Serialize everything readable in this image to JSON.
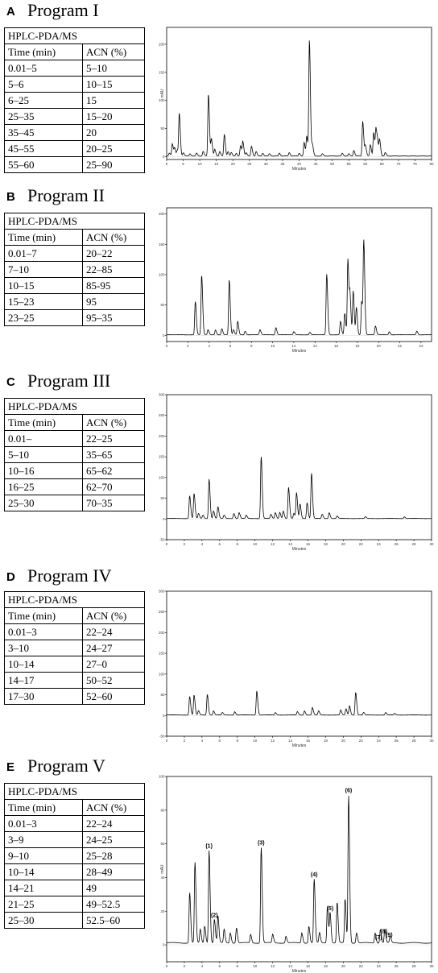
{
  "panels": [
    {
      "letter": "A",
      "title": "Program I",
      "table_header": "HPLC-PDA/MS",
      "col_time": "Time (min)",
      "col_acn": "ACN (%)",
      "rows": [
        [
          "0.01–5",
          "5–10"
        ],
        [
          "5–6",
          "10–15"
        ],
        [
          "6–25",
          "15"
        ],
        [
          "25–35",
          "15–20"
        ],
        [
          "35–45",
          "20"
        ],
        [
          "45–55",
          "20–25"
        ],
        [
          "55–60",
          "25–90"
        ]
      ]
    },
    {
      "letter": "B",
      "title": "Program II",
      "table_header": "HPLC-PDA/MS",
      "col_time": "Time (min)",
      "col_acn": "ACN (%)",
      "rows": [
        [
          "0.01–7",
          "20–22"
        ],
        [
          "7–10",
          "22–85"
        ],
        [
          "10–15",
          "85-95"
        ],
        [
          "15–23",
          "95"
        ],
        [
          "23–25",
          "95–35"
        ]
      ]
    },
    {
      "letter": "C",
      "title": "Program III",
      "table_header": "HPLC-PDA/MS",
      "col_time": "Time (min)",
      "col_acn": "ACN (%)",
      "rows": [
        [
          "0.01–",
          "22–25"
        ],
        [
          "5–10",
          "35–65"
        ],
        [
          "10–16",
          "65–62"
        ],
        [
          "16–25",
          "62–70"
        ],
        [
          "25–30",
          "70–35"
        ]
      ]
    },
    {
      "letter": "D",
      "title": "Program IV",
      "table_header": "HPLC-PDA/MS",
      "col_time": "Time (min)",
      "col_acn": "ACN (%)",
      "rows": [
        [
          "0.01–3",
          "22–24"
        ],
        [
          "3–10",
          "24–27"
        ],
        [
          "10–14",
          "27–0"
        ],
        [
          "14–17",
          "50–52"
        ],
        [
          "17–30",
          "52–60"
        ]
      ]
    },
    {
      "letter": "E",
      "title": "Program V",
      "table_header": "HPLC-PDA/MS",
      "col_time": "Time (min)",
      "col_acn": "ACN (%)",
      "rows": [
        [
          "0.01–3",
          "22–24"
        ],
        [
          "3–9",
          "24–25"
        ],
        [
          "9–10",
          "25–28"
        ],
        [
          "10–14",
          "28–49"
        ],
        [
          "14–21",
          "49"
        ],
        [
          "21–25",
          "49–52.5"
        ],
        [
          "25–30",
          "52.5–60"
        ]
      ]
    }
  ],
  "chart_data": [
    {
      "type": "line",
      "xlabel": "Minutes",
      "ylabel": "mAU",
      "xlim": [
        0,
        80
      ],
      "ylim": [
        -5,
        230
      ],
      "xticks": [
        0,
        5,
        10,
        15,
        20,
        25,
        30,
        35,
        40,
        45,
        50,
        55,
        60,
        65,
        70,
        75,
        80
      ],
      "yticks": [
        0,
        50,
        100,
        150,
        200
      ],
      "peaks": [
        [
          0.8,
          5
        ],
        [
          1.7,
          22
        ],
        [
          2.4,
          14
        ],
        [
          3.2,
          10
        ],
        [
          3.8,
          75
        ],
        [
          5,
          6
        ],
        [
          7,
          4
        ],
        [
          9,
          5
        ],
        [
          11,
          8
        ],
        [
          12.6,
          110
        ],
        [
          13.5,
          30
        ],
        [
          14.5,
          12
        ],
        [
          16,
          8
        ],
        [
          17.4,
          38
        ],
        [
          18.5,
          8
        ],
        [
          19.5,
          6
        ],
        [
          21,
          5
        ],
        [
          22.3,
          18
        ],
        [
          23,
          25
        ],
        [
          24,
          6
        ],
        [
          25.6,
          17
        ],
        [
          27,
          8
        ],
        [
          29,
          5
        ],
        [
          31,
          4
        ],
        [
          34,
          5
        ],
        [
          37,
          6
        ],
        [
          40,
          5
        ],
        [
          41.5,
          24
        ],
        [
          42.3,
          35
        ],
        [
          43.1,
          205
        ],
        [
          44,
          20
        ],
        [
          47,
          4
        ],
        [
          53,
          5
        ],
        [
          55,
          4
        ],
        [
          56.5,
          10
        ],
        [
          59.2,
          62
        ],
        [
          60,
          18
        ],
        [
          61.5,
          20
        ],
        [
          62.5,
          42
        ],
        [
          63.2,
          48
        ],
        [
          63.7,
          20
        ],
        [
          64.3,
          28
        ],
        [
          66,
          6
        ]
      ]
    },
    {
      "type": "line",
      "xlabel": "Minutes",
      "xlim": [
        0,
        25
      ],
      "ylim": [
        -10,
        210
      ],
      "xticks": [
        0,
        2,
        4,
        6,
        8,
        10,
        12,
        14,
        16,
        18,
        20,
        22,
        24
      ],
      "yticks": [
        0,
        50,
        100,
        150,
        200
      ],
      "peaks": [
        [
          2.7,
          55
        ],
        [
          3.3,
          98
        ],
        [
          3.9,
          8
        ],
        [
          4.6,
          8
        ],
        [
          5.2,
          10
        ],
        [
          5.9,
          90
        ],
        [
          6.3,
          8
        ],
        [
          6.7,
          22
        ],
        [
          7.4,
          6
        ],
        [
          8.8,
          8
        ],
        [
          10.3,
          12
        ],
        [
          12,
          5
        ],
        [
          13.5,
          4
        ],
        [
          15.1,
          100
        ],
        [
          16.4,
          22
        ],
        [
          16.8,
          35
        ],
        [
          17.1,
          125
        ],
        [
          17.3,
          60
        ],
        [
          17.6,
          72
        ],
        [
          17.9,
          45
        ],
        [
          18.4,
          55
        ],
        [
          18.6,
          152
        ],
        [
          19.7,
          14
        ],
        [
          21,
          5
        ],
        [
          23.6,
          6
        ]
      ]
    },
    {
      "type": "line",
      "xlabel": "Minutes",
      "xlim": [
        0,
        30
      ],
      "ylim": [
        -50,
        300
      ],
      "xticks": [
        0,
        2,
        4,
        6,
        8,
        10,
        12,
        14,
        16,
        18,
        20,
        22,
        24,
        26,
        28,
        30
      ],
      "yticks": [
        -50,
        0,
        50,
        100,
        150,
        200,
        250,
        300
      ],
      "peaks": [
        [
          2.6,
          55
        ],
        [
          3.1,
          60
        ],
        [
          3.6,
          12
        ],
        [
          4.1,
          8
        ],
        [
          4.8,
          95
        ],
        [
          5.3,
          18
        ],
        [
          5.8,
          28
        ],
        [
          6.5,
          8
        ],
        [
          7.6,
          12
        ],
        [
          8.2,
          14
        ],
        [
          9,
          8
        ],
        [
          10.7,
          150
        ],
        [
          11.8,
          10
        ],
        [
          12.3,
          14
        ],
        [
          12.8,
          15
        ],
        [
          13.2,
          18
        ],
        [
          13.8,
          75
        ],
        [
          14.4,
          12
        ],
        [
          14.7,
          62
        ],
        [
          15.1,
          35
        ],
        [
          15.9,
          38
        ],
        [
          16.4,
          110
        ],
        [
          17.6,
          10
        ],
        [
          18.4,
          14
        ],
        [
          19.3,
          6
        ],
        [
          22.5,
          4
        ],
        [
          26.9,
          4
        ]
      ]
    },
    {
      "type": "line",
      "xlabel": "Minutes",
      "xlim": [
        0,
        30
      ],
      "ylim": [
        -50,
        300
      ],
      "xticks": [
        0,
        2,
        4,
        6,
        8,
        10,
        12,
        14,
        16,
        18,
        20,
        22,
        24,
        26,
        28,
        30
      ],
      "yticks": [
        -50,
        0,
        50,
        100,
        150,
        200,
        250,
        300
      ],
      "peaks": [
        [
          2.6,
          45
        ],
        [
          3.1,
          48
        ],
        [
          3.6,
          10
        ],
        [
          4.6,
          50
        ],
        [
          5.3,
          10
        ],
        [
          6.3,
          6
        ],
        [
          7.7,
          8
        ],
        [
          10.2,
          58
        ],
        [
          12.3,
          6
        ],
        [
          14.8,
          8
        ],
        [
          15.6,
          10
        ],
        [
          16.5,
          18
        ],
        [
          17.2,
          10
        ],
        [
          19.7,
          12
        ],
        [
          20.3,
          15
        ],
        [
          20.7,
          22
        ],
        [
          21.4,
          55
        ],
        [
          22.3,
          6
        ],
        [
          24.8,
          6
        ],
        [
          25.8,
          4
        ]
      ]
    },
    {
      "type": "line",
      "xlabel": "Minutes",
      "ylabel": "mAU",
      "xlim": [
        0,
        30
      ],
      "ylim": [
        -10,
        100
      ],
      "xticks": [
        0,
        2,
        4,
        6,
        8,
        10,
        12,
        14,
        16,
        18,
        20,
        22,
        24,
        26,
        28,
        30
      ],
      "yticks": [
        0,
        20,
        40,
        60,
        80,
        100
      ],
      "peaks": [
        [
          2.6,
          30
        ],
        [
          3.2,
          48
        ],
        [
          3.8,
          8
        ],
        [
          4.3,
          10
        ],
        [
          4.8,
          55
        ],
        [
          5.4,
          14
        ],
        [
          5.8,
          16
        ],
        [
          6.5,
          8
        ],
        [
          7.2,
          6
        ],
        [
          7.9,
          9
        ],
        [
          9.5,
          5
        ],
        [
          10.7,
          57
        ],
        [
          12,
          5
        ],
        [
          13.5,
          4
        ],
        [
          15.3,
          6
        ],
        [
          16.1,
          10
        ],
        [
          16.7,
          38
        ],
        [
          17.3,
          6
        ],
        [
          18.2,
          22
        ],
        [
          18.5,
          18
        ],
        [
          19.3,
          24
        ],
        [
          20.2,
          26
        ],
        [
          20.6,
          88
        ],
        [
          21.5,
          6
        ],
        [
          23.6,
          6
        ],
        [
          24.2,
          8
        ],
        [
          24.7,
          8
        ],
        [
          25.3,
          4
        ]
      ],
      "annotations": [
        {
          "label": "(1)",
          "x": 4.8
        },
        {
          "label": "(2)",
          "x": 5.4
        },
        {
          "label": "(3)",
          "x": 10.7
        },
        {
          "label": "(4)",
          "x": 16.7
        },
        {
          "label": "(5)",
          "x": 18.5
        },
        {
          "label": "(6)",
          "x": 20.6
        },
        {
          "label": "(7)",
          "x": 24.0
        },
        {
          "label": "(8)",
          "x": 24.6
        },
        {
          "label": "(9)",
          "x": 25.2
        }
      ]
    }
  ]
}
